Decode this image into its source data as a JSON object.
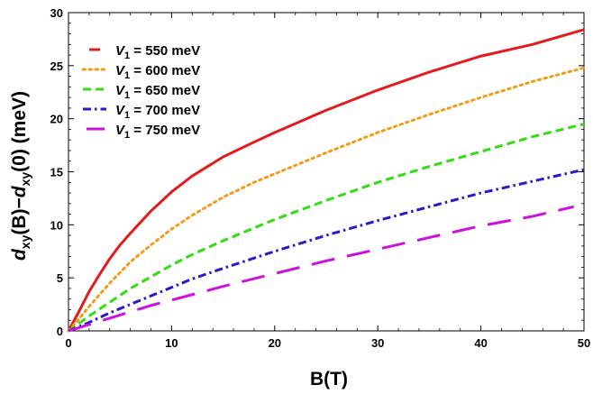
{
  "chart_data": {
    "type": "line",
    "xlabel": "B(T)",
    "ylabel_parts": {
      "d1": "d",
      "sub1": "xy",
      "mid": "(B)−",
      "d2": "d",
      "sub2": "xy",
      "tail": "(0)  (meV)"
    },
    "xlim": [
      0,
      50
    ],
    "ylim": [
      0,
      30
    ],
    "xticks": [
      0,
      10,
      20,
      30,
      40,
      50
    ],
    "yticks": [
      0,
      5,
      10,
      15,
      20,
      25,
      30
    ],
    "legend_position": "top-left",
    "series": [
      {
        "name": "= 550 meV",
        "legend_var": "V",
        "legend_sub": "1",
        "color": "#e41a1c",
        "style": "solid",
        "x": [
          0,
          1,
          2,
          3,
          4,
          5,
          6,
          8,
          10,
          12,
          15,
          18,
          20,
          25,
          30,
          35,
          40,
          45,
          50
        ],
        "y": [
          0,
          1.8,
          3.7,
          5.3,
          6.8,
          8.1,
          9.2,
          11.3,
          13.1,
          14.6,
          16.4,
          17.8,
          18.7,
          20.8,
          22.7,
          24.4,
          25.9,
          27.0,
          28.4
        ]
      },
      {
        "name": "= 600 meV",
        "legend_var": "V",
        "legend_sub": "1",
        "color": "#f39c1a",
        "style": "dotted",
        "x": [
          0,
          1,
          2,
          3,
          4,
          5,
          6,
          8,
          10,
          12,
          15,
          18,
          20,
          25,
          30,
          35,
          40,
          45,
          50
        ],
        "y": [
          0,
          1.1,
          2.3,
          3.4,
          4.5,
          5.5,
          6.5,
          8.1,
          9.6,
          10.9,
          12.6,
          14.0,
          14.8,
          16.8,
          18.7,
          20.4,
          22.0,
          23.5,
          24.8
        ]
      },
      {
        "name": "= 650 meV",
        "legend_var": "V",
        "legend_sub": "1",
        "color": "#33dd11",
        "style": "dashed",
        "x": [
          0,
          2,
          4,
          6,
          8,
          10,
          12,
          15,
          20,
          25,
          30,
          35,
          40,
          45,
          50
        ],
        "y": [
          0,
          1.4,
          2.7,
          4.0,
          5.1,
          6.2,
          7.2,
          8.5,
          10.5,
          12.3,
          14.0,
          15.5,
          16.9,
          18.3,
          19.5
        ]
      },
      {
        "name": "= 700 meV",
        "legend_var": "V",
        "legend_sub": "1",
        "color": "#2a1acc",
        "style": "dashdot",
        "x": [
          0,
          2,
          4,
          6,
          8,
          10,
          12,
          15,
          20,
          25,
          30,
          35,
          40,
          45,
          50
        ],
        "y": [
          0,
          0.8,
          1.7,
          2.5,
          3.3,
          4.1,
          4.9,
          5.9,
          7.5,
          9.0,
          10.4,
          11.7,
          13.0,
          14.1,
          15.2
        ]
      },
      {
        "name": "= 750 meV",
        "legend_var": "V",
        "legend_sub": "1",
        "color": "#cc11dd",
        "style": "longdash",
        "x": [
          0,
          2,
          4,
          6,
          8,
          10,
          15,
          20,
          25,
          30,
          35,
          40,
          45,
          49
        ],
        "y": [
          0,
          0.6,
          1.2,
          1.8,
          2.4,
          2.9,
          4.2,
          5.4,
          6.6,
          7.7,
          8.8,
          9.9,
          10.8,
          11.7
        ]
      }
    ]
  }
}
